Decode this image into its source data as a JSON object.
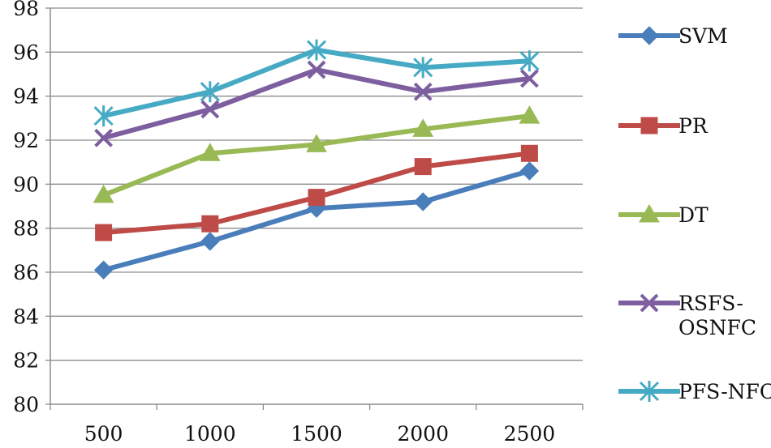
{
  "chart_data": {
    "type": "line",
    "title": "",
    "xlabel": "",
    "ylabel": "",
    "categories": [
      "500",
      "1000",
      "1500",
      "2000",
      "2500"
    ],
    "ylim": [
      80,
      98
    ],
    "yticks": [
      80,
      82,
      84,
      86,
      88,
      90,
      92,
      94,
      96,
      98
    ],
    "grid": "horizontal",
    "legend_position": "right",
    "series": [
      {
        "name": "SVM",
        "label_lines": [
          "SVM"
        ],
        "marker": "diamond",
        "color": "#4a7ebb",
        "values": [
          86.1,
          87.4,
          88.9,
          89.2,
          90.6
        ]
      },
      {
        "name": "PR",
        "label_lines": [
          "PR"
        ],
        "marker": "square",
        "color": "#be4b48",
        "values": [
          87.8,
          88.2,
          89.4,
          90.8,
          91.4
        ]
      },
      {
        "name": "DT",
        "label_lines": [
          "DT"
        ],
        "marker": "triangle",
        "color": "#98b954",
        "values": [
          89.5,
          91.4,
          91.8,
          92.5,
          93.1
        ]
      },
      {
        "name": "RSFS-OSNFC",
        "label_lines": [
          "RSFS-",
          "OSNFC"
        ],
        "marker": "x",
        "color": "#7d5fa0",
        "values": [
          92.1,
          93.4,
          95.2,
          94.2,
          94.8
        ]
      },
      {
        "name": "PFS-NFC",
        "label_lines": [
          "PFS-NFC"
        ],
        "marker": "asterisk",
        "color": "#46aac5",
        "values": [
          93.1,
          94.2,
          96.1,
          95.3,
          95.6
        ]
      }
    ]
  }
}
